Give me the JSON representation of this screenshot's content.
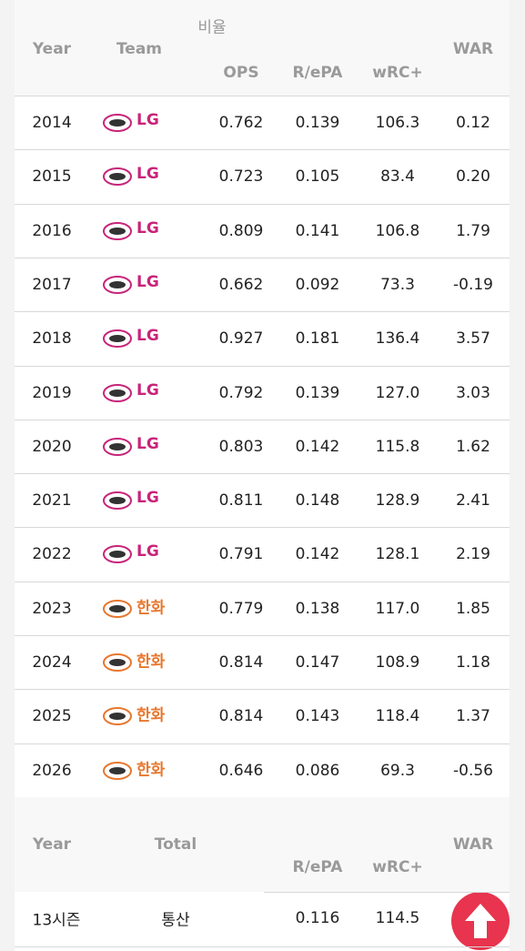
{
  "header": {
    "group": "비율",
    "year": "Year",
    "team": "Team",
    "ops": "OPS",
    "repa": "R/ePA",
    "wrc": "wRC+",
    "war": "WAR"
  },
  "table": {
    "rows": [
      {
        "year": "2014",
        "team": "LG",
        "team_color": "#c8247a",
        "ops": "0.762",
        "repa": "0.139",
        "wrc": "106.3",
        "war": "0.12"
      },
      {
        "year": "2015",
        "team": "LG",
        "team_color": "#c8247a",
        "ops": "0.723",
        "repa": "0.105",
        "wrc": "83.4",
        "war": "0.20"
      },
      {
        "year": "2016",
        "team": "LG",
        "team_color": "#c8247a",
        "ops": "0.809",
        "repa": "0.141",
        "wrc": "106.8",
        "war": "1.79"
      },
      {
        "year": "2017",
        "team": "LG",
        "team_color": "#c8247a",
        "ops": "0.662",
        "repa": "0.092",
        "wrc": "73.3",
        "war": "-0.19"
      },
      {
        "year": "2018",
        "team": "LG",
        "team_color": "#c8247a",
        "ops": "0.927",
        "repa": "0.181",
        "wrc": "136.4",
        "war": "3.57"
      },
      {
        "year": "2019",
        "team": "LG",
        "team_color": "#c8247a",
        "ops": "0.792",
        "repa": "0.139",
        "wrc": "127.0",
        "war": "3.03"
      },
      {
        "year": "2020",
        "team": "LG",
        "team_color": "#c8247a",
        "ops": "0.803",
        "repa": "0.142",
        "wrc": "115.8",
        "war": "1.62"
      },
      {
        "year": "2021",
        "team": "LG",
        "team_color": "#c8247a",
        "ops": "0.811",
        "repa": "0.148",
        "wrc": "128.9",
        "war": "2.41"
      },
      {
        "year": "2022",
        "team": "LG",
        "team_color": "#c8247a",
        "ops": "0.791",
        "repa": "0.142",
        "wrc": "128.1",
        "war": "2.19"
      },
      {
        "year": "2023",
        "team": "한화",
        "team_color": "#e8772e",
        "ops": "0.779",
        "repa": "0.138",
        "wrc": "117.0",
        "war": "1.85"
      },
      {
        "year": "2024",
        "team": "한화",
        "team_color": "#e8772e",
        "ops": "0.814",
        "repa": "0.147",
        "wrc": "108.9",
        "war": "1.18"
      },
      {
        "year": "2025",
        "team": "한화",
        "team_color": "#e8772e",
        "ops": "0.814",
        "repa": "0.143",
        "wrc": "118.4",
        "war": "1.37"
      },
      {
        "year": "2026",
        "team": "한화",
        "team_color": "#e8772e",
        "ops": "0.646",
        "repa": "0.086",
        "wrc": "69.3",
        "war": "-0.56"
      }
    ]
  },
  "summary": {
    "header": {
      "year": "Year",
      "total": "Total",
      "war": "WAR",
      "repa": "R/ePA",
      "wrc": "wRC+"
    },
    "row": {
      "seasons": "13시즌",
      "label": "통산",
      "repa": "0.116",
      "wrc": "114.5"
    }
  }
}
